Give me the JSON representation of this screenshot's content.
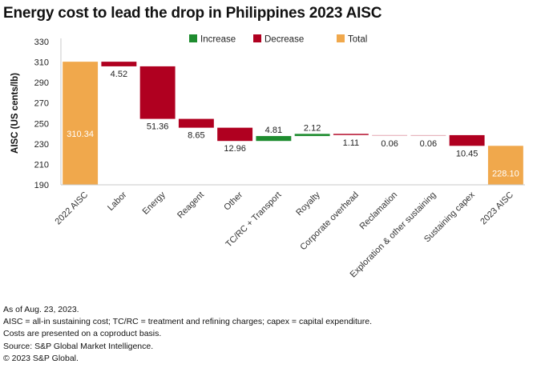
{
  "chart_data": {
    "type": "waterfall",
    "title": "Energy cost to lead the drop in Philippines 2023 AISC",
    "xlabel": "",
    "ylabel": "AISC (US cents/lb)",
    "ylim": [
      190,
      330
    ],
    "yticks": [
      190,
      210,
      230,
      250,
      270,
      290,
      310,
      330
    ],
    "grid": false,
    "legend_position": "top-center",
    "legend": [
      {
        "name": "Increase",
        "color": "#1e8c2f"
      },
      {
        "name": "Decrease",
        "color": "#b00020"
      },
      {
        "name": "Total",
        "color": "#f0a84c"
      }
    ],
    "categories": [
      "2022 AISC",
      "Labor",
      "Energy",
      "Reagent",
      "Other",
      "TC/RC + Transport",
      "Royalty",
      "Corporate overhead",
      "Reclamation",
      "Exploration & other sustaining",
      "Sustaining capex",
      "2023 AISC"
    ],
    "bars": [
      {
        "category": "2022 AISC",
        "kind": "total",
        "value": 310.34,
        "label": "310.34"
      },
      {
        "category": "Labor",
        "kind": "decrease",
        "value": 4.52,
        "label": "4.52"
      },
      {
        "category": "Energy",
        "kind": "decrease",
        "value": 51.36,
        "label": "51.36"
      },
      {
        "category": "Reagent",
        "kind": "decrease",
        "value": 8.65,
        "label": "8.65"
      },
      {
        "category": "Other",
        "kind": "decrease",
        "value": 12.96,
        "label": "12.96"
      },
      {
        "category": "TC/RC + Transport",
        "kind": "increase",
        "value": 4.81,
        "label": "4.81"
      },
      {
        "category": "Royalty",
        "kind": "increase",
        "value": 2.12,
        "label": "2.12"
      },
      {
        "category": "Corporate overhead",
        "kind": "decrease",
        "value": 1.11,
        "label": "1.11"
      },
      {
        "category": "Reclamation",
        "kind": "decrease",
        "value": 0.06,
        "label": "0.06"
      },
      {
        "category": "Exploration & other sustaining",
        "kind": "decrease",
        "value": 0.06,
        "label": "0.06"
      },
      {
        "category": "Sustaining capex",
        "kind": "decrease",
        "value": 10.45,
        "label": "10.45"
      },
      {
        "category": "2023 AISC",
        "kind": "total",
        "value": 228.1,
        "label": "228.10"
      }
    ]
  },
  "footnotes": [
    "As of Aug. 23, 2023.",
    "AISC = all-in sustaining cost; TC/RC = treatment and refining charges; capex = capital expenditure.",
    "Costs are presented on a coproduct basis.",
    "Source: S&P Global Market Intelligence.",
    "© 2023 S&P Global."
  ]
}
